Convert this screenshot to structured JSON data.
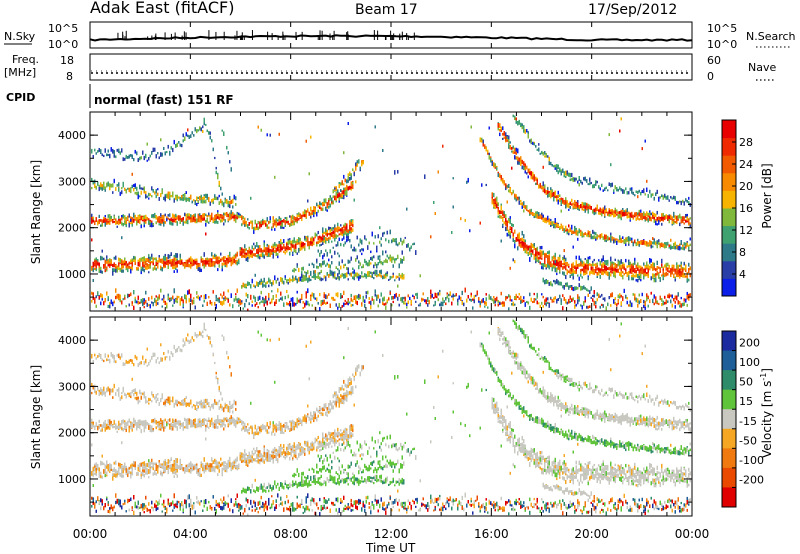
{
  "header": {
    "title": "Adak East (fitACF)",
    "beam": "Beam 17",
    "date": "17/Sep/2012"
  },
  "noise_panel": {
    "left_label": "N.Sky",
    "left_ticks": [
      "10^5",
      "10^0"
    ],
    "right_ticks": [
      "10^5",
      "10^0"
    ],
    "right_label": "N.Search"
  },
  "freq_panel": {
    "left_label": "Freq.",
    "left_unit": "[MHz]",
    "left_ticks": [
      "18",
      "8"
    ],
    "right_ticks": [
      "60",
      "0"
    ],
    "right_label": "Nave"
  },
  "cpid_panel": {
    "label": "CPID",
    "mode": "normal (fast) 151 RF"
  },
  "chart_data": [
    {
      "type": "heatmap",
      "name": "power",
      "ylabel": "Slant Range [km]",
      "yticks": [
        1000,
        2000,
        3000,
        4000
      ],
      "ylim": [
        200,
        4500
      ],
      "xlim": [
        0,
        24
      ],
      "colorbar": {
        "label": "Power [dB]",
        "ticks": [
          "4",
          "8",
          "12",
          "16",
          "20",
          "24",
          "28"
        ],
        "colors": [
          "#0b1fe8",
          "#2a3ea8",
          "#2e7a88",
          "#3fa070",
          "#7fb83a",
          "#f6b400",
          "#f88a00",
          "#f25a00",
          "#ef2a00",
          "#e80000"
        ]
      }
    },
    {
      "type": "heatmap",
      "name": "velocity",
      "ylabel": "Slant Range [km]",
      "yticks": [
        1000,
        2000,
        3000,
        4000
      ],
      "ylim": [
        200,
        4500
      ],
      "xlim": [
        0,
        24
      ],
      "xticks": [
        "00:00",
        "04:00",
        "08:00",
        "12:00",
        "16:00",
        "20:00",
        "00:00"
      ],
      "xlabel": "Time UT",
      "colorbar": {
        "label": "Velocity [m s",
        "label_sup": "-1",
        "label_end": "]",
        "ticks": [
          "200",
          "100",
          "50",
          "15",
          "-15",
          "-50",
          "-100",
          "-200"
        ],
        "colors": [
          "#1b2a9e",
          "#1e5f9a",
          "#2f8c6a",
          "#5fc43a",
          "#c8c8c0",
          "#f5a623",
          "#f07a10",
          "#ea4a00",
          "#e00000"
        ]
      }
    }
  ]
}
